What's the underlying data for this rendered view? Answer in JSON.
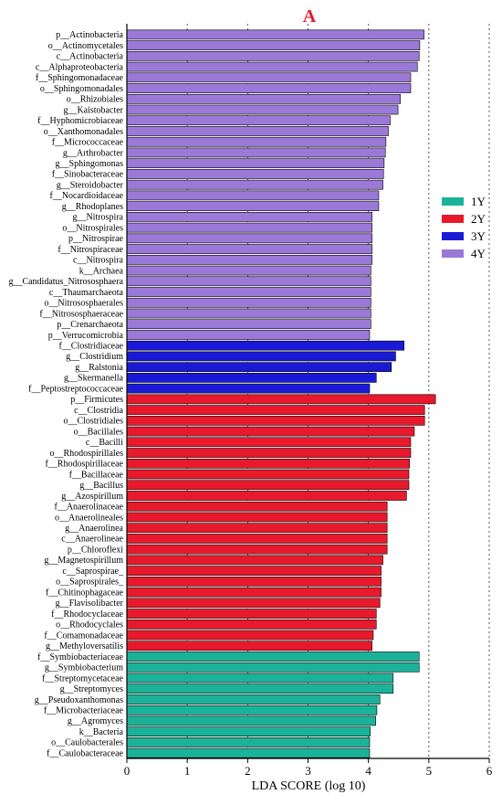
{
  "chart_data": {
    "type": "bar",
    "orientation": "horizontal",
    "title": "A",
    "xlabel": "LDA SCORE (log 10)",
    "ylabel": "",
    "xlim": [
      0,
      6
    ],
    "xticks": [
      "0",
      "1",
      "2",
      "3",
      "4",
      "5",
      "6"
    ],
    "grid": "vertical-dotted",
    "legend_position": "right",
    "legend": [
      {
        "label": "1Y",
        "color": "#1ab39a"
      },
      {
        "label": "2Y",
        "color": "#e8192c"
      },
      {
        "label": "3Y",
        "color": "#1a1ad6"
      },
      {
        "label": "4Y",
        "color": "#9b79d8"
      }
    ],
    "bars": [
      {
        "label": "p__Actinobacteria",
        "value": 4.92,
        "group": "4Y"
      },
      {
        "label": "o__Actinomycetales",
        "value": 4.85,
        "group": "4Y"
      },
      {
        "label": "c__Actinobacteria",
        "value": 4.84,
        "group": "4Y"
      },
      {
        "label": "c__Alphaproteobacteria",
        "value": 4.81,
        "group": "4Y"
      },
      {
        "label": "f__Sphingomonadaceae",
        "value": 4.7,
        "group": "4Y"
      },
      {
        "label": "o__Sphingomonadales",
        "value": 4.7,
        "group": "4Y"
      },
      {
        "label": "o__Rhizobiales",
        "value": 4.53,
        "group": "4Y"
      },
      {
        "label": "g__Kaistobacter",
        "value": 4.49,
        "group": "4Y"
      },
      {
        "label": "f__Hyphomicrobiaceae",
        "value": 4.36,
        "group": "4Y"
      },
      {
        "label": "o__Xanthomonadales",
        "value": 4.33,
        "group": "4Y"
      },
      {
        "label": "f__Micrococcaceae",
        "value": 4.29,
        "group": "4Y"
      },
      {
        "label": "g__Arthrobacter",
        "value": 4.28,
        "group": "4Y"
      },
      {
        "label": "g__Sphingomonas",
        "value": 4.26,
        "group": "4Y"
      },
      {
        "label": "f__Sinobacteraceae",
        "value": 4.25,
        "group": "4Y"
      },
      {
        "label": "g__Steroidobacter",
        "value": 4.24,
        "group": "4Y"
      },
      {
        "label": "f__Nocardioidaceae",
        "value": 4.17,
        "group": "4Y"
      },
      {
        "label": "g__Rhodoplanes",
        "value": 4.17,
        "group": "4Y"
      },
      {
        "label": "g__Nitrospira",
        "value": 4.06,
        "group": "4Y"
      },
      {
        "label": "o__Nitrospirales",
        "value": 4.06,
        "group": "4Y"
      },
      {
        "label": "p__Nitrospirae",
        "value": 4.06,
        "group": "4Y"
      },
      {
        "label": "f__Nitrospiraceae",
        "value": 4.06,
        "group": "4Y"
      },
      {
        "label": "c__Nitrospira",
        "value": 4.06,
        "group": "4Y"
      },
      {
        "label": "k__Archaea",
        "value": 4.04,
        "group": "4Y"
      },
      {
        "label": "g__Candidatus_Nitrososphaera",
        "value": 4.04,
        "group": "4Y"
      },
      {
        "label": "c__Thaumarchaeota",
        "value": 4.04,
        "group": "4Y"
      },
      {
        "label": "o__Nitrososphaerales",
        "value": 4.04,
        "group": "4Y"
      },
      {
        "label": "f__Nitrososphaeraceae",
        "value": 4.04,
        "group": "4Y"
      },
      {
        "label": "p__Crenarchaeota",
        "value": 4.04,
        "group": "4Y"
      },
      {
        "label": "p__Verrucomicrobia",
        "value": 4.02,
        "group": "4Y"
      },
      {
        "label": "f__Clostridiaceae",
        "value": 4.59,
        "group": "3Y"
      },
      {
        "label": "g__Clostridium",
        "value": 4.45,
        "group": "3Y"
      },
      {
        "label": "g__Ralstonia",
        "value": 4.38,
        "group": "3Y"
      },
      {
        "label": "g__Skermanella",
        "value": 4.13,
        "group": "3Y"
      },
      {
        "label": "f__Peptostreptococcaceae",
        "value": 4.02,
        "group": "3Y"
      },
      {
        "label": "p__Firmicutes",
        "value": 5.11,
        "group": "2Y"
      },
      {
        "label": "c__Clostridia",
        "value": 4.93,
        "group": "2Y"
      },
      {
        "label": "o__Clostridiales",
        "value": 4.93,
        "group": "2Y"
      },
      {
        "label": "o__Bacillales",
        "value": 4.76,
        "group": "2Y"
      },
      {
        "label": "c__Bacilli",
        "value": 4.7,
        "group": "2Y"
      },
      {
        "label": "o__Rhodospirillales",
        "value": 4.7,
        "group": "2Y"
      },
      {
        "label": "f__Rhodospirillaceae",
        "value": 4.68,
        "group": "2Y"
      },
      {
        "label": "f__Bacillaceae",
        "value": 4.67,
        "group": "2Y"
      },
      {
        "label": "g__Bacillus",
        "value": 4.67,
        "group": "2Y"
      },
      {
        "label": "g__Azospirillum",
        "value": 4.63,
        "group": "2Y"
      },
      {
        "label": "f__Anaerolinaceae",
        "value": 4.31,
        "group": "2Y"
      },
      {
        "label": "o__Anaerolineales",
        "value": 4.31,
        "group": "2Y"
      },
      {
        "label": "g__Anaerolinea",
        "value": 4.31,
        "group": "2Y"
      },
      {
        "label": "c__Anaerolineae",
        "value": 4.31,
        "group": "2Y"
      },
      {
        "label": "p__Chloroflexi",
        "value": 4.31,
        "group": "2Y"
      },
      {
        "label": "g__Magnetospirillum",
        "value": 4.24,
        "group": "2Y"
      },
      {
        "label": "c__Saprospirae_",
        "value": 4.21,
        "group": "2Y"
      },
      {
        "label": "o__Saprospirales_",
        "value": 4.21,
        "group": "2Y"
      },
      {
        "label": "f__Chitinophagaceae",
        "value": 4.21,
        "group": "2Y"
      },
      {
        "label": "g__Flavisolibacter",
        "value": 4.19,
        "group": "2Y"
      },
      {
        "label": "f__Rhodocyclaceae",
        "value": 4.13,
        "group": "2Y"
      },
      {
        "label": "o__Rhodocyclales",
        "value": 4.13,
        "group": "2Y"
      },
      {
        "label": "f__Comamonadaceae",
        "value": 4.08,
        "group": "2Y"
      },
      {
        "label": "g__Methyloversatilis",
        "value": 4.06,
        "group": "2Y"
      },
      {
        "label": "f__Symbiobacteriaceae",
        "value": 4.84,
        "group": "1Y"
      },
      {
        "label": "g__Symbiobacterium",
        "value": 4.84,
        "group": "1Y"
      },
      {
        "label": "f__Streptomycetaceae",
        "value": 4.41,
        "group": "1Y"
      },
      {
        "label": "g__Streptomyces",
        "value": 4.41,
        "group": "1Y"
      },
      {
        "label": "g__Pseudoxanthomonas",
        "value": 4.19,
        "group": "1Y"
      },
      {
        "label": "f__Microbacteriaceae",
        "value": 4.14,
        "group": "1Y"
      },
      {
        "label": "g__Agromyces",
        "value": 4.12,
        "group": "1Y"
      },
      {
        "label": "k__Bacteria",
        "value": 4.03,
        "group": "1Y"
      },
      {
        "label": "o__Caulobacterales",
        "value": 4.02,
        "group": "1Y"
      },
      {
        "label": "f__Caulobacteraceae",
        "value": 4.02,
        "group": "1Y"
      }
    ]
  }
}
